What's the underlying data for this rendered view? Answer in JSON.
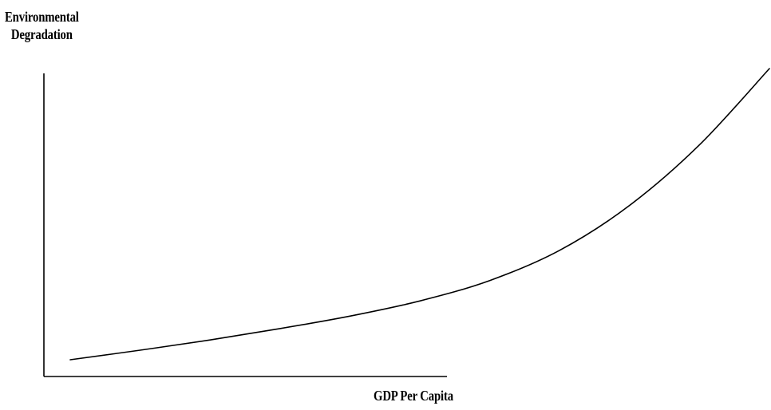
{
  "chart_data": {
    "type": "line",
    "title": "",
    "ylabel_lines": [
      "Environmental",
      "Degradation"
    ],
    "xlabel": "GDP Per Capita",
    "ticks": "none",
    "grid": false,
    "legend": "none",
    "series": [
      {
        "color": "#000000",
        "points": [
          [
            0.0,
            0.0
          ],
          [
            0.1,
            0.033
          ],
          [
            0.2,
            0.068
          ],
          [
            0.3,
            0.107
          ],
          [
            0.4,
            0.15
          ],
          [
            0.5,
            0.202
          ],
          [
            0.6,
            0.272
          ],
          [
            0.7,
            0.376
          ],
          [
            0.8,
            0.53
          ],
          [
            0.9,
            0.738
          ],
          [
            1.0,
            1.0
          ]
        ]
      }
    ]
  }
}
